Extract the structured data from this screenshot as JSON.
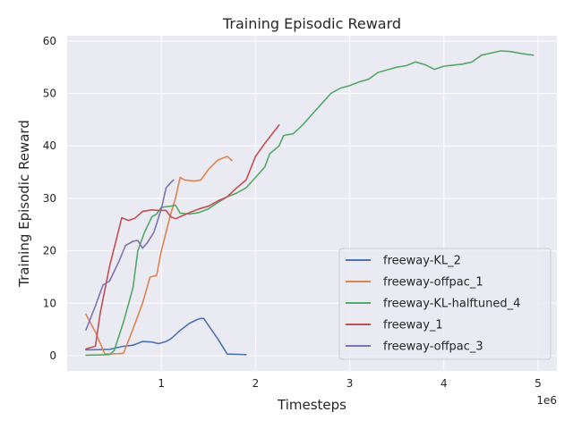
{
  "chart_data": {
    "type": "line",
    "title": "Training Episodic Reward",
    "xlabel": "Timesteps",
    "ylabel": "Training Episodic Reward",
    "x_offset_label": "1e6",
    "xlim": [
      0,
      5.2
    ],
    "ylim": [
      -2.9,
      61
    ],
    "x_ticks": [
      1,
      2,
      3,
      4,
      5
    ],
    "x_tick_labels": [
      "1",
      "2",
      "3",
      "4",
      "5"
    ],
    "y_ticks": [
      0,
      10,
      20,
      30,
      40,
      50,
      60
    ],
    "y_tick_labels": [
      "0",
      "10",
      "20",
      "30",
      "40",
      "50",
      "60"
    ],
    "grid": true,
    "legend_position": "lower-right",
    "series": [
      {
        "name": "freeway-KL_2",
        "color": "#4c72b0",
        "points": [
          [
            0.2,
            1.1
          ],
          [
            0.45,
            1.2
          ],
          [
            0.6,
            1.8
          ],
          [
            0.7,
            2.0
          ],
          [
            0.8,
            2.7
          ],
          [
            0.9,
            2.6
          ],
          [
            0.97,
            2.3
          ],
          [
            1.05,
            2.7
          ],
          [
            1.1,
            3.2
          ],
          [
            1.2,
            4.8
          ],
          [
            1.3,
            6.2
          ],
          [
            1.38,
            6.9
          ],
          [
            1.42,
            7.1
          ],
          [
            1.45,
            7.1
          ],
          [
            1.6,
            3.2
          ],
          [
            1.7,
            0.3
          ],
          [
            1.9,
            0.2
          ]
        ]
      },
      {
        "name": "freeway-offpac_1",
        "color": "#dd8452",
        "points": [
          [
            0.2,
            7.9
          ],
          [
            0.3,
            4.5
          ],
          [
            0.4,
            0.3
          ],
          [
            0.58,
            0.4
          ],
          [
            0.6,
            0.5
          ],
          [
            0.7,
            5.1
          ],
          [
            0.8,
            10.0
          ],
          [
            0.88,
            15.0
          ],
          [
            0.95,
            15.3
          ],
          [
            1.0,
            20.0
          ],
          [
            1.1,
            27.0
          ],
          [
            1.15,
            30.0
          ],
          [
            1.2,
            34.0
          ],
          [
            1.25,
            33.5
          ],
          [
            1.35,
            33.3
          ],
          [
            1.42,
            33.5
          ],
          [
            1.5,
            35.5
          ],
          [
            1.6,
            37.3
          ],
          [
            1.7,
            38.0
          ],
          [
            1.75,
            37.2
          ]
        ]
      },
      {
        "name": "freeway-KL-halftuned_4",
        "color": "#55a868",
        "points": [
          [
            0.2,
            0.1
          ],
          [
            0.45,
            0.2
          ],
          [
            0.5,
            1.0
          ],
          [
            0.6,
            6.5
          ],
          [
            0.7,
            13.0
          ],
          [
            0.75,
            20.0
          ],
          [
            0.82,
            23.5
          ],
          [
            0.9,
            26.5
          ],
          [
            0.95,
            27.0
          ],
          [
            1.0,
            28.3
          ],
          [
            1.1,
            28.5
          ],
          [
            1.15,
            28.7
          ],
          [
            1.2,
            27.2
          ],
          [
            1.3,
            27.0
          ],
          [
            1.4,
            27.3
          ],
          [
            1.5,
            28.0
          ],
          [
            1.6,
            29.2
          ],
          [
            1.7,
            30.3
          ],
          [
            1.8,
            31.0
          ],
          [
            1.9,
            32.0
          ],
          [
            2.0,
            34.0
          ],
          [
            2.1,
            36.0
          ],
          [
            2.15,
            38.5
          ],
          [
            2.25,
            40.0
          ],
          [
            2.3,
            42.0
          ],
          [
            2.4,
            42.3
          ],
          [
            2.5,
            44.0
          ],
          [
            2.6,
            46.0
          ],
          [
            2.7,
            48.0
          ],
          [
            2.8,
            50.0
          ],
          [
            2.9,
            51.0
          ],
          [
            3.0,
            51.5
          ],
          [
            3.1,
            52.2
          ],
          [
            3.2,
            52.7
          ],
          [
            3.3,
            54.0
          ],
          [
            3.4,
            54.5
          ],
          [
            3.5,
            55.0
          ],
          [
            3.6,
            55.3
          ],
          [
            3.7,
            56.0
          ],
          [
            3.8,
            55.5
          ],
          [
            3.9,
            54.6
          ],
          [
            4.0,
            55.2
          ],
          [
            4.1,
            55.4
          ],
          [
            4.2,
            55.6
          ],
          [
            4.3,
            56.0
          ],
          [
            4.4,
            57.3
          ],
          [
            4.5,
            57.7
          ],
          [
            4.6,
            58.1
          ],
          [
            4.7,
            58.0
          ],
          [
            4.8,
            57.7
          ],
          [
            4.9,
            57.4
          ],
          [
            4.95,
            57.3
          ]
        ]
      },
      {
        "name": "freeway_1",
        "color": "#c44e52",
        "points": [
          [
            0.2,
            1.3
          ],
          [
            0.3,
            1.8
          ],
          [
            0.35,
            8.0
          ],
          [
            0.45,
            17.0
          ],
          [
            0.52,
            22.0
          ],
          [
            0.58,
            26.3
          ],
          [
            0.65,
            25.8
          ],
          [
            0.72,
            26.2
          ],
          [
            0.8,
            27.5
          ],
          [
            0.9,
            27.8
          ],
          [
            0.97,
            27.7
          ],
          [
            1.05,
            27.7
          ],
          [
            1.1,
            26.5
          ],
          [
            1.15,
            26.1
          ],
          [
            1.2,
            26.5
          ],
          [
            1.3,
            27.3
          ],
          [
            1.4,
            28.0
          ],
          [
            1.5,
            28.5
          ],
          [
            1.6,
            29.5
          ],
          [
            1.7,
            30.3
          ],
          [
            1.8,
            32.0
          ],
          [
            1.9,
            33.5
          ],
          [
            2.0,
            38.0
          ],
          [
            2.1,
            40.5
          ],
          [
            2.2,
            42.8
          ],
          [
            2.25,
            44.0
          ]
        ]
      },
      {
        "name": "freeway-offpac_3",
        "color": "#8172b3",
        "points": [
          [
            0.2,
            4.9
          ],
          [
            0.3,
            9.5
          ],
          [
            0.38,
            13.5
          ],
          [
            0.45,
            14.2
          ],
          [
            0.55,
            18.0
          ],
          [
            0.62,
            21.0
          ],
          [
            0.7,
            21.8
          ],
          [
            0.75,
            22.0
          ],
          [
            0.8,
            20.5
          ],
          [
            0.85,
            21.5
          ],
          [
            0.92,
            23.5
          ],
          [
            1.0,
            28.0
          ],
          [
            1.05,
            32.0
          ],
          [
            1.1,
            33.0
          ],
          [
            1.13,
            33.5
          ]
        ]
      }
    ]
  }
}
